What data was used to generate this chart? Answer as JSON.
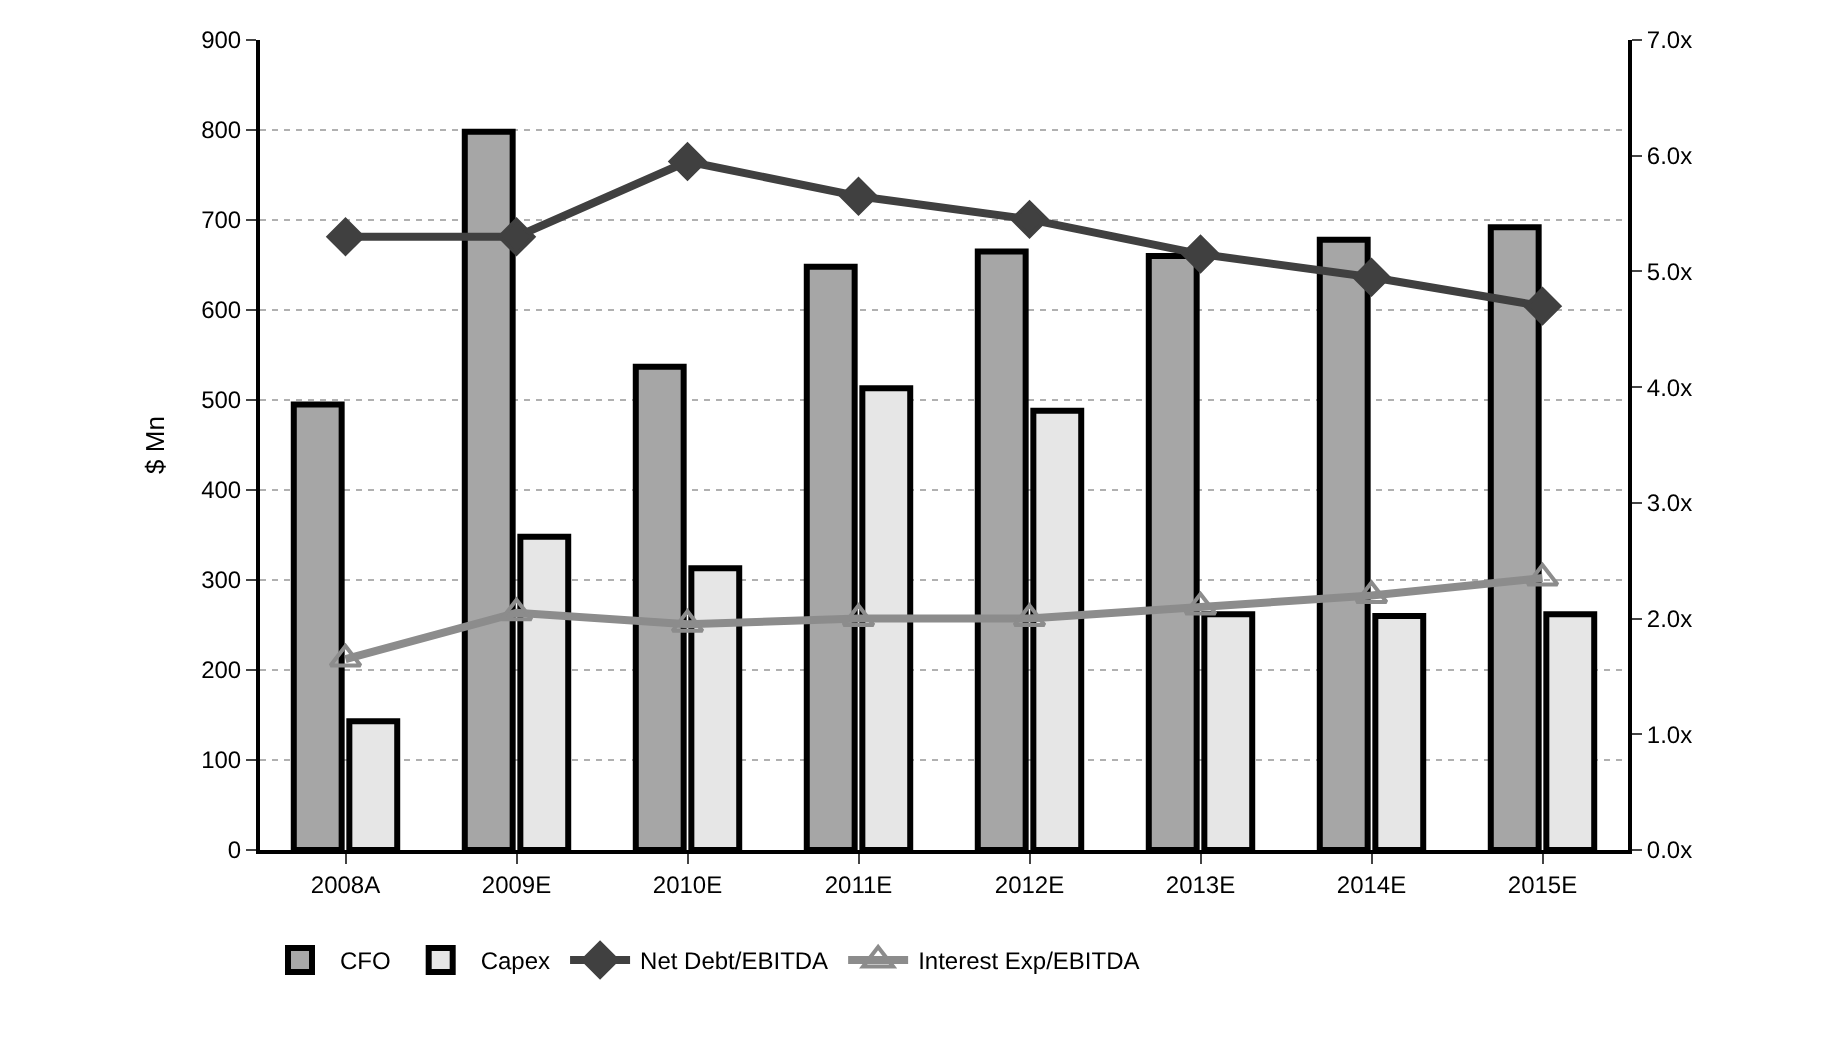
{
  "chart_data": {
    "type": "bar",
    "ylabel": "$ Mn",
    "categories": [
      "2008A",
      "2009E",
      "2010E",
      "2011E",
      "2012E",
      "2013E",
      "2014E",
      "2015E"
    ],
    "series": [
      {
        "name": "CFO",
        "color": "#a6a6a6",
        "values": [
          495,
          798,
          537,
          648,
          665,
          660,
          678,
          692
        ]
      },
      {
        "name": "Capex",
        "color": "#e6e6e6",
        "values": [
          143,
          348,
          313,
          513,
          488,
          262,
          260,
          262
        ]
      },
      {
        "name": "Net Debt/EBITDA",
        "type": "line",
        "axis": "y2",
        "marker": "diamond",
        "color": "#404040",
        "values": [
          5.3,
          5.3,
          5.95,
          5.65,
          5.45,
          5.15,
          4.95,
          4.7
        ]
      },
      {
        "name": "Interest Exp/EBITDA",
        "type": "line",
        "axis": "y2",
        "marker": "triangle",
        "color": "#8c8c8c",
        "values": [
          1.65,
          2.05,
          1.95,
          2.0,
          2.0,
          2.1,
          2.2,
          2.35
        ]
      }
    ],
    "ylim": [
      0,
      900
    ],
    "yticks": [
      0,
      100,
      200,
      300,
      400,
      500,
      600,
      700,
      800,
      900
    ],
    "y2lim": [
      0,
      7
    ],
    "y2ticks": [
      {
        "value": 0,
        "label": "0.0x"
      },
      {
        "value": 1,
        "label": "1.0x"
      },
      {
        "value": 2,
        "label": "2.0x"
      },
      {
        "value": 3,
        "label": "3.0x"
      },
      {
        "value": 4,
        "label": "4.0x"
      },
      {
        "value": 5,
        "label": "5.0x"
      },
      {
        "value": 6,
        "label": "6.0x"
      },
      {
        "value": 7,
        "label": "7.0x"
      }
    ],
    "grid": "y",
    "legend": "bottom"
  }
}
